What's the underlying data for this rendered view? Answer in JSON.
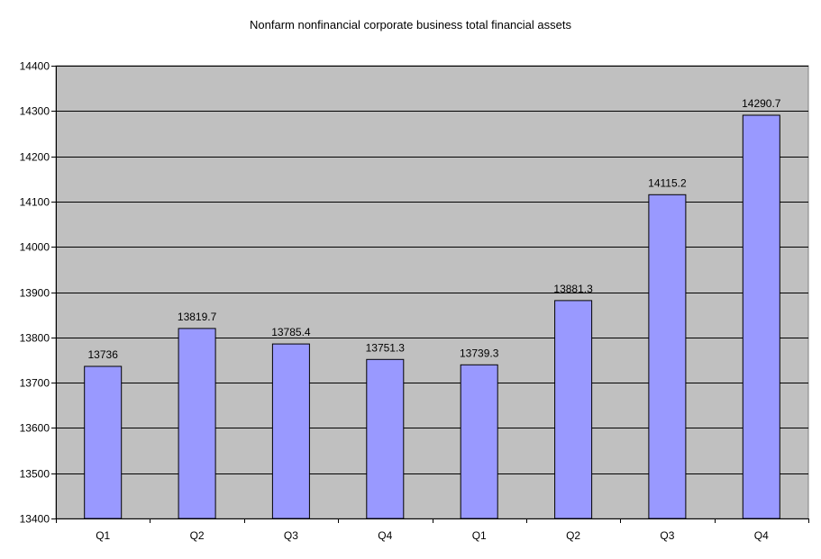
{
  "chart_data": {
    "type": "bar",
    "title": "Nonfarm nonfinancial corporate business total financial assets",
    "xlabel": "",
    "ylabel": "",
    "categories": [
      "Q1",
      "Q2",
      "Q3",
      "Q4",
      "Q1",
      "Q2",
      "Q3",
      "Q4"
    ],
    "values": [
      13736,
      13819.7,
      13785.4,
      13751.3,
      13739.3,
      13881.3,
      14115.2,
      14290.7
    ],
    "data_labels": [
      "13736",
      "13819.7",
      "13785.4",
      "13751.3",
      "13739.3",
      "13881.3",
      "14115.2",
      "14290.7"
    ],
    "ylim": [
      13400,
      14400
    ],
    "yticks": [
      13400,
      13500,
      13600,
      13700,
      13800,
      13900,
      14000,
      14100,
      14200,
      14300,
      14400
    ],
    "ytick_labels": [
      "13400",
      "13500",
      "13600",
      "13700",
      "13800",
      "13900",
      "14000",
      "14100",
      "14200",
      "14300",
      "14400"
    ],
    "grid": true,
    "legend": "none",
    "colors": {
      "plot_background": "#c0c0c0",
      "bar_fill": "#9999ff",
      "bar_stroke": "#000000",
      "gridline": "#000000"
    }
  }
}
